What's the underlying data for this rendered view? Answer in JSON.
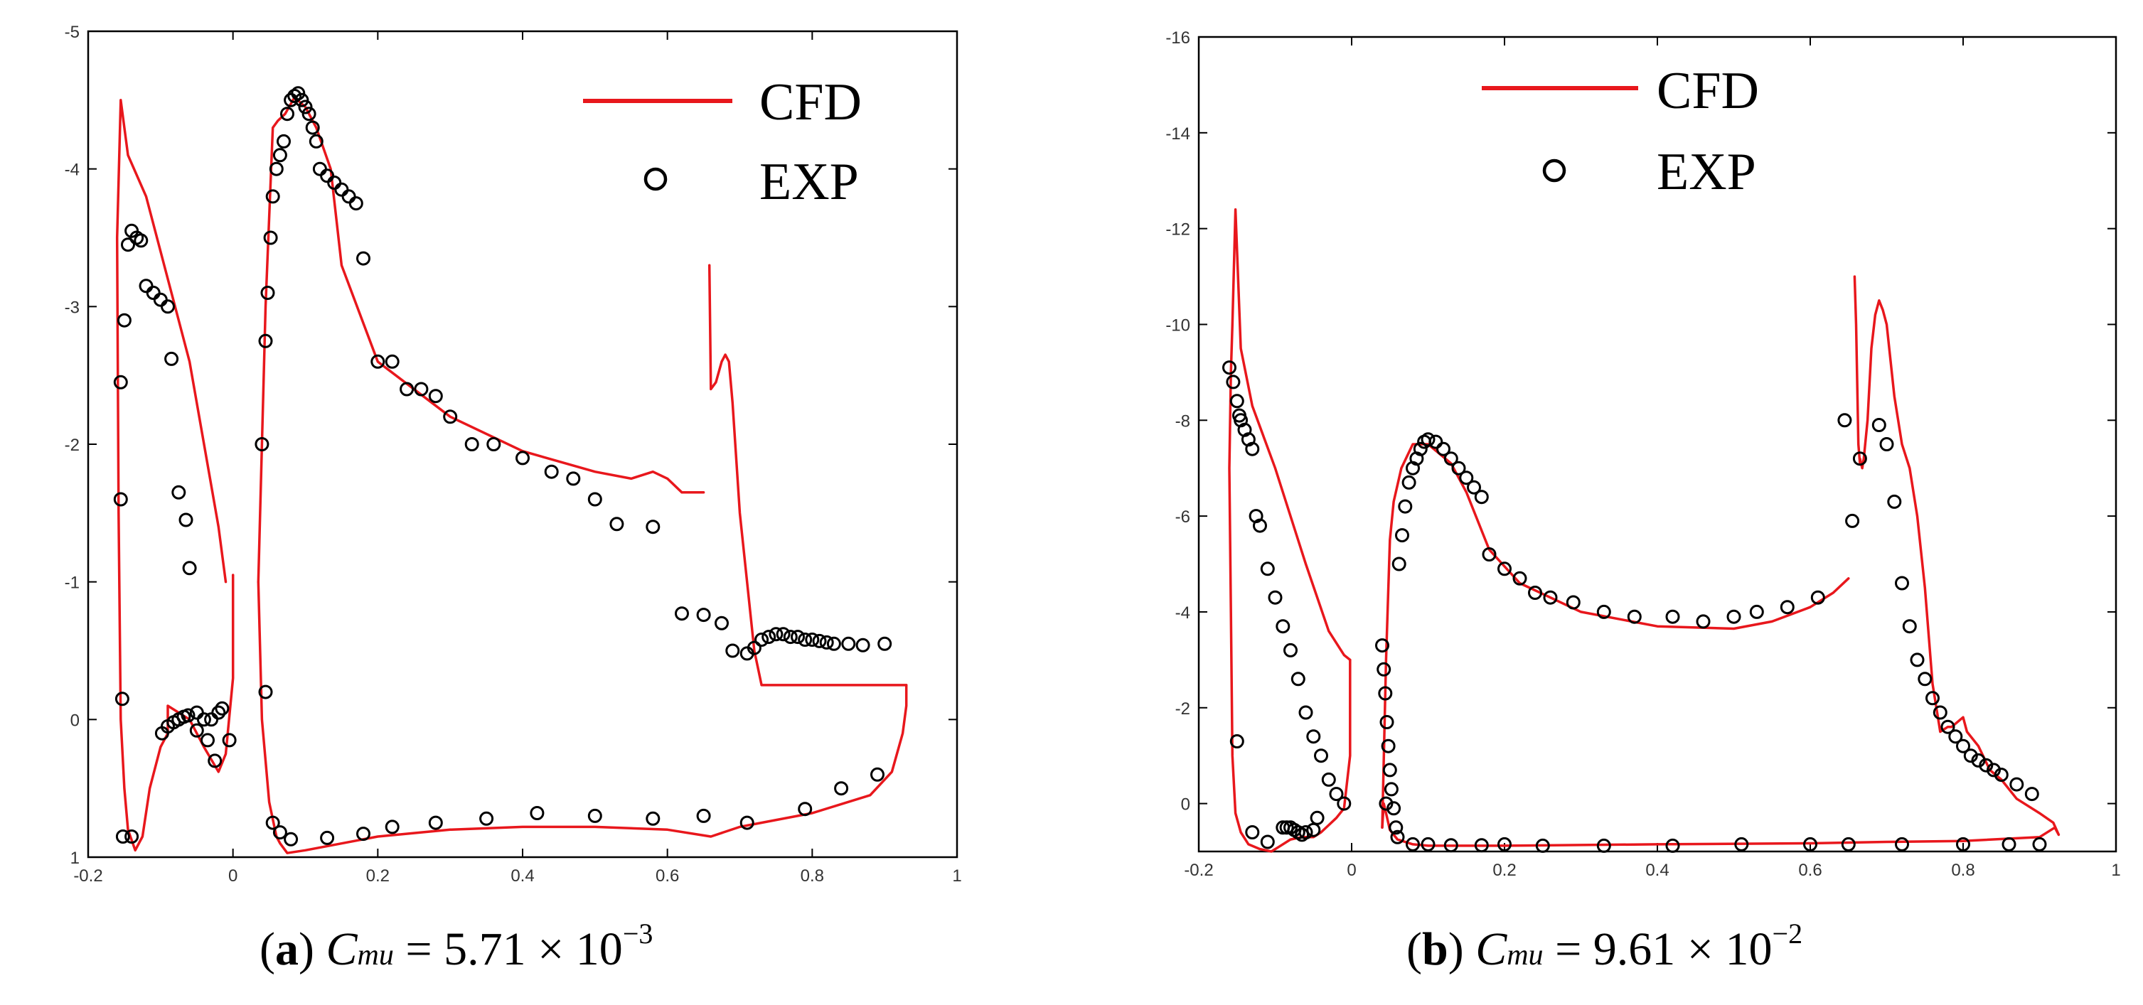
{
  "colors": {
    "cfd": "#e8171c",
    "exp": "#000000",
    "axis": "#000000"
  },
  "legend": {
    "cfd_label": "CFD",
    "exp_label": "EXP"
  },
  "chart_data": [
    {
      "type": "line",
      "panel": "a",
      "caption": {
        "letter": "a",
        "symbol": "C",
        "subscript": "mu",
        "equals": " = ",
        "mantissa": "5.71 × 10",
        "exponent": "−3"
      },
      "xlim": [
        -0.2,
        1.0
      ],
      "ylim": [
        1.0,
        -5.0
      ],
      "y_inverted": true,
      "x_ticks": [
        -0.2,
        0,
        0.2,
        0.4,
        0.6,
        0.8,
        1
      ],
      "x_tick_labels": [
        "-0.2",
        "0",
        "0.2",
        "0.4",
        "0.6",
        "0.8",
        "1"
      ],
      "y_ticks": [
        -5,
        -4,
        -3,
        -2,
        -1,
        0,
        1
      ],
      "y_tick_labels": [
        "-5",
        "-4",
        "-3",
        "-2",
        "-1",
        "0",
        "1"
      ],
      "legend_position": "top-right",
      "series": [
        {
          "name": "CFD",
          "style": "line",
          "segments": [
            {
              "x": [
                -0.01,
                -0.02,
                -0.06,
                -0.12,
                -0.145,
                -0.155,
                -0.16,
                -0.158,
                -0.155,
                -0.15,
                -0.145,
                -0.135,
                -0.125,
                -0.115,
                -0.1,
                -0.09,
                -0.09,
                -0.06,
                -0.04,
                -0.02,
                -0.01,
                0.0,
                0.0
              ],
              "y": [
                -1.0,
                -1.4,
                -2.6,
                -3.8,
                -4.1,
                -4.5,
                -3.5,
                -1.5,
                0.0,
                0.5,
                0.8,
                0.95,
                0.85,
                0.5,
                0.2,
                0.1,
                -0.1,
                0.0,
                0.2,
                0.38,
                0.25,
                -0.3,
                -1.05
              ]
            },
            {
              "x": [
                0.035,
                0.045,
                0.055,
                0.062,
                0.072,
                0.085,
                0.1,
                0.115,
                0.135,
                0.15,
                0.2,
                0.3,
                0.4,
                0.5,
                0.55,
                0.58,
                0.6,
                0.62,
                0.65
              ],
              "y": [
                -1.0,
                -3.0,
                -4.3,
                -4.35,
                -4.4,
                -4.52,
                -4.45,
                -4.3,
                -4.0,
                -3.3,
                -2.6,
                -2.2,
                -1.95,
                -1.8,
                -1.75,
                -1.8,
                -1.75,
                -1.65,
                -1.65
              ]
            },
            {
              "x": [
                0.035,
                0.04,
                0.05,
                0.06,
                0.065,
                0.075,
                0.1,
                0.2,
                0.3,
                0.4,
                0.5,
                0.6,
                0.66,
                0.7,
                0.8,
                0.88,
                0.91,
                0.925,
                0.93,
                0.93
              ],
              "y": [
                -1.0,
                0.0,
                0.6,
                0.85,
                0.9,
                0.97,
                0.95,
                0.85,
                0.8,
                0.78,
                0.78,
                0.8,
                0.85,
                0.78,
                0.68,
                0.55,
                0.38,
                0.1,
                -0.1,
                -0.25
              ]
            },
            {
              "x": [
                0.658,
                0.66,
                0.667,
                0.675,
                0.68,
                0.685,
                0.69,
                0.7,
                0.72,
                0.73,
                0.93
              ],
              "y": [
                -3.3,
                -2.4,
                -2.45,
                -2.6,
                -2.65,
                -2.6,
                -2.3,
                -1.5,
                -0.5,
                -0.25,
                -0.25
              ]
            }
          ]
        },
        {
          "name": "EXP",
          "style": "markers",
          "x": [
            -0.155,
            -0.155,
            -0.153,
            -0.152,
            -0.15,
            -0.145,
            -0.14,
            -0.133,
            -0.127,
            -0.12,
            -0.11,
            -0.1,
            -0.09,
            -0.085,
            -0.075,
            -0.065,
            -0.06,
            -0.05,
            -0.04,
            -0.03,
            -0.02,
            -0.015,
            -0.005,
            -0.098,
            -0.09,
            -0.082,
            -0.075,
            -0.068,
            -0.062,
            -0.05,
            -0.035,
            -0.025,
            -0.14,
            0.04,
            0.045,
            0.048,
            0.052,
            0.055,
            0.06,
            0.065,
            0.07,
            0.075,
            0.08,
            0.085,
            0.09,
            0.095,
            0.1,
            0.105,
            0.11,
            0.115,
            0.12,
            0.13,
            0.14,
            0.15,
            0.16,
            0.17,
            0.18,
            0.2,
            0.22,
            0.24,
            0.26,
            0.28,
            0.3,
            0.33,
            0.36,
            0.4,
            0.44,
            0.47,
            0.5,
            0.53,
            0.58,
            0.62,
            0.65,
            0.675,
            0.69,
            0.71,
            0.72,
            0.73,
            0.74,
            0.75,
            0.76,
            0.77,
            0.78,
            0.79,
            0.8,
            0.81,
            0.82,
            0.83,
            0.85,
            0.87,
            0.9,
            0.045,
            0.055,
            0.065,
            0.08,
            0.13,
            0.18,
            0.22,
            0.28,
            0.35,
            0.42,
            0.5,
            0.58,
            0.65,
            0.71,
            0.79,
            0.84,
            0.89
          ],
          "y": [
            -2.45,
            -1.6,
            -0.15,
            0.85,
            -2.9,
            -3.45,
            -3.55,
            -3.5,
            -3.48,
            -3.15,
            -3.1,
            -3.05,
            -3.0,
            -2.62,
            -1.65,
            -1.45,
            -1.1,
            -0.05,
            -0.0,
            0.0,
            -0.05,
            -0.08,
            0.15,
            0.1,
            0.05,
            0.02,
            0.0,
            -0.02,
            -0.03,
            0.08,
            0.15,
            0.3,
            0.85,
            -2.0,
            -2.75,
            -3.1,
            -3.5,
            -3.8,
            -4.0,
            -4.1,
            -4.2,
            -4.4,
            -4.5,
            -4.53,
            -4.55,
            -4.5,
            -4.45,
            -4.4,
            -4.3,
            -4.2,
            -4.0,
            -3.95,
            -3.9,
            -3.85,
            -3.8,
            -3.75,
            -3.35,
            -2.6,
            -2.6,
            -2.4,
            -2.4,
            -2.35,
            -2.2,
            -2.0,
            -2.0,
            -1.9,
            -1.8,
            -1.75,
            -1.6,
            -1.42,
            -1.4,
            -0.77,
            -0.76,
            -0.7,
            -0.5,
            -0.48,
            -0.52,
            -0.58,
            -0.6,
            -0.62,
            -0.62,
            -0.6,
            -0.6,
            -0.58,
            -0.58,
            -0.57,
            -0.56,
            -0.55,
            -0.55,
            -0.54,
            -0.55,
            -0.2,
            0.75,
            0.82,
            0.87,
            0.86,
            0.83,
            0.78,
            0.75,
            0.72,
            0.68,
            0.7,
            0.72,
            0.7,
            0.75,
            0.65,
            0.5,
            0.4
          ]
        }
      ]
    },
    {
      "type": "line",
      "panel": "b",
      "caption": {
        "letter": "b",
        "symbol": "C",
        "subscript": "mu",
        "equals": " = ",
        "mantissa": "9.61 × 10",
        "exponent": "−2"
      },
      "xlim": [
        -0.2,
        1.0
      ],
      "ylim": [
        1.0,
        -16.0
      ],
      "y_inverted": true,
      "x_ticks": [
        -0.2,
        0,
        0.2,
        0.4,
        0.6,
        0.8,
        1
      ],
      "x_tick_labels": [
        "-0.2",
        "0",
        "0.2",
        "0.4",
        "0.6",
        "0.8",
        "1"
      ],
      "y_ticks": [
        -16,
        -14,
        -12,
        -10,
        -8,
        -6,
        -4,
        -2,
        0
      ],
      "y_tick_labels": [
        "-16",
        "-14",
        "-12",
        "-10",
        "-8",
        "-6",
        "-4",
        "-2",
        "0"
      ],
      "legend_position": "top-right",
      "series": [
        {
          "name": "CFD",
          "style": "line",
          "segments": [
            {
              "x": [
                -0.002,
                -0.01,
                -0.03,
                -0.06,
                -0.1,
                -0.13,
                -0.145,
                -0.152,
                -0.156,
                -0.158,
                -0.16,
                -0.158,
                -0.156,
                -0.152,
                -0.145,
                -0.135,
                -0.12,
                -0.105,
                -0.095,
                -0.08,
                -0.065,
                -0.05,
                -0.04,
                -0.03,
                -0.02,
                -0.01,
                -0.002,
                -0.002
              ],
              "y": [
                -3.0,
                -3.1,
                -3.6,
                -5.0,
                -7.0,
                -8.3,
                -9.5,
                -12.4,
                -10.0,
                -9.0,
                -7.0,
                -4.0,
                -1.0,
                0.2,
                0.6,
                0.85,
                0.95,
                1.0,
                0.9,
                0.75,
                0.7,
                0.7,
                0.6,
                0.45,
                0.3,
                0.1,
                -1.0,
                -3.0
              ]
            },
            {
              "x": [
                0.04,
                0.045,
                0.05,
                0.055,
                0.065,
                0.08,
                0.1,
                0.13,
                0.15,
                0.18,
                0.22,
                0.3,
                0.4,
                0.5,
                0.55,
                0.6,
                0.63,
                0.65
              ],
              "y": [
                0.5,
                -3.0,
                -5.5,
                -6.3,
                -7.0,
                -7.5,
                -7.5,
                -7.1,
                -6.5,
                -5.3,
                -4.6,
                -4.0,
                -3.7,
                -3.65,
                -3.8,
                -4.1,
                -4.4,
                -4.7
              ]
            },
            {
              "x": [
                0.04,
                0.042,
                0.045,
                0.05,
                0.06,
                0.08,
                0.1,
                0.2,
                0.4,
                0.6,
                0.7,
                0.8,
                0.9,
                0.92,
                0.925,
                0.918,
                0.9,
                0.87,
                0.85,
                0.835,
                0.82,
                0.805,
                0.8,
                0.785,
                0.78,
                0.77,
                0.76,
                0.75,
                0.74,
                0.73,
                0.72,
                0.71,
                0.7,
                0.695,
                0.69,
                0.685,
                0.68,
                0.675,
                0.67,
                0.668,
                0.665
              ],
              "y": [
                0.5,
                0.0,
                0.2,
                0.55,
                0.75,
                0.85,
                0.88,
                0.88,
                0.85,
                0.83,
                0.8,
                0.78,
                0.7,
                0.5,
                0.65,
                0.4,
                0.2,
                -0.1,
                -0.5,
                -0.7,
                -1.2,
                -1.5,
                -1.8,
                -1.6,
                -1.6,
                -1.5,
                -2.5,
                -4.5,
                -6.0,
                -7.0,
                -7.5,
                -8.5,
                -10.0,
                -10.3,
                -10.5,
                -10.2,
                -9.5,
                -8.0,
                -7.2,
                -7.0,
                -7.2
              ]
            },
            {
              "x": [
                0.658,
                0.66,
                0.663,
                0.665
              ],
              "y": [
                -11.0,
                -10.0,
                -7.5,
                -7.1
              ]
            }
          ]
        },
        {
          "name": "EXP",
          "style": "markers",
          "x": [
            -0.16,
            -0.155,
            -0.15,
            -0.147,
            -0.145,
            -0.14,
            -0.135,
            -0.13,
            -0.125,
            -0.12,
            -0.11,
            -0.1,
            -0.09,
            -0.08,
            -0.07,
            -0.06,
            -0.05,
            -0.04,
            -0.03,
            -0.02,
            -0.01,
            -0.15,
            -0.13,
            -0.11,
            -0.09,
            -0.085,
            -0.08,
            -0.075,
            -0.07,
            -0.065,
            -0.06,
            -0.05,
            -0.045,
            0.04,
            0.042,
            0.044,
            0.046,
            0.048,
            0.05,
            0.052,
            0.055,
            0.058,
            0.062,
            0.066,
            0.07,
            0.075,
            0.08,
            0.085,
            0.09,
            0.095,
            0.1,
            0.11,
            0.12,
            0.13,
            0.14,
            0.15,
            0.16,
            0.17,
            0.18,
            0.2,
            0.22,
            0.24,
            0.26,
            0.29,
            0.33,
            0.37,
            0.42,
            0.46,
            0.5,
            0.53,
            0.57,
            0.61,
            0.645,
            0.655,
            0.665,
            0.69,
            0.7,
            0.71,
            0.72,
            0.73,
            0.74,
            0.75,
            0.76,
            0.77,
            0.78,
            0.79,
            0.8,
            0.81,
            0.82,
            0.83,
            0.84,
            0.85,
            0.87,
            0.89,
            0.045,
            0.06,
            0.08,
            0.1,
            0.13,
            0.17,
            0.2,
            0.25,
            0.33,
            0.42,
            0.51,
            0.6,
            0.65,
            0.72,
            0.8,
            0.86,
            0.9
          ],
          "y": [
            -9.1,
            -8.8,
            -8.4,
            -8.1,
            -8.0,
            -7.8,
            -7.6,
            -7.4,
            -6.0,
            -5.8,
            -4.9,
            -4.3,
            -3.7,
            -3.2,
            -2.6,
            -1.9,
            -1.4,
            -1.0,
            -0.5,
            -0.2,
            0.0,
            -1.3,
            0.6,
            0.8,
            0.5,
            0.5,
            0.5,
            0.55,
            0.6,
            0.65,
            0.6,
            0.55,
            0.3,
            -3.3,
            -2.8,
            -2.3,
            -1.7,
            -1.2,
            -0.7,
            -0.3,
            0.1,
            0.5,
            -5.0,
            -5.6,
            -6.2,
            -6.7,
            -7.0,
            -7.2,
            -7.4,
            -7.55,
            -7.6,
            -7.55,
            -7.4,
            -7.2,
            -7.0,
            -6.8,
            -6.6,
            -6.4,
            -5.2,
            -4.9,
            -4.7,
            -4.4,
            -4.3,
            -4.2,
            -4.0,
            -3.9,
            -3.9,
            -3.8,
            -3.9,
            -4.0,
            -4.1,
            -4.3,
            -8.0,
            -5.9,
            -7.2,
            -7.9,
            -7.5,
            -6.3,
            -4.6,
            -3.7,
            -3.0,
            -2.6,
            -2.2,
            -1.9,
            -1.6,
            -1.4,
            -1.2,
            -1.0,
            -0.9,
            -0.8,
            -0.7,
            -0.6,
            -0.4,
            -0.2,
            0.0,
            0.7,
            0.85,
            0.85,
            0.87,
            0.87,
            0.85,
            0.88,
            0.88,
            0.88,
            0.85,
            0.85,
            0.85,
            0.85,
            0.85,
            0.85,
            0.85
          ]
        }
      ]
    }
  ]
}
